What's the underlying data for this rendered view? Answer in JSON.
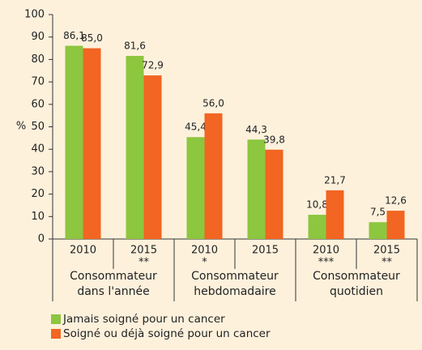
{
  "chart_data": {
    "type": "bar",
    "y_label": "%",
    "categories": [
      "2010",
      "2015",
      "2010",
      "2015",
      "2010",
      "2015"
    ],
    "markers": [
      null,
      "**",
      "*",
      null,
      "***",
      "**"
    ],
    "groups": [
      {
        "lines": [
          "Consommateur",
          "dans l'année"
        ]
      },
      {
        "lines": [
          "Consommateur",
          "hebdomadaire"
        ]
      },
      {
        "lines": [
          "Consommateur",
          "quotidien"
        ]
      }
    ],
    "series": [
      {
        "name": "Jamais soigné pour un cancer",
        "color": "#8dc63f",
        "values": [
          86.1,
          81.6,
          45.4,
          44.3,
          10.8,
          7.5
        ],
        "value_labels": [
          "86,1",
          "81,6",
          "45,4",
          "44,3",
          "10,8",
          "7,5"
        ]
      },
      {
        "name": "Soigné ou déjà soigné pour un cancer",
        "color": "#f26522",
        "values": [
          85.0,
          72.9,
          56.0,
          39.8,
          21.7,
          12.6
        ],
        "value_labels": [
          "85,0",
          "72,9",
          "56,0",
          "39,8",
          "21,7",
          "12,6"
        ]
      }
    ],
    "ylim": [
      0,
      100
    ],
    "yticks": [
      0,
      10,
      20,
      30,
      40,
      50,
      60,
      70,
      80,
      90,
      100
    ],
    "grid": false
  }
}
